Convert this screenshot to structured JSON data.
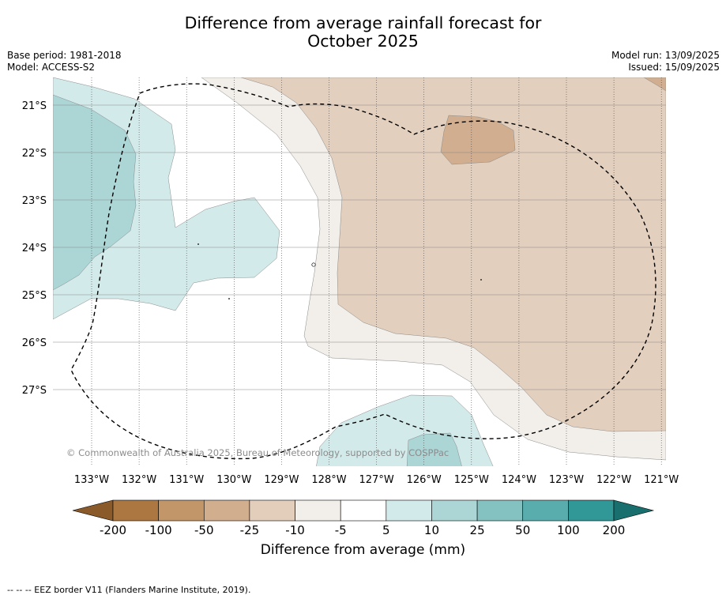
{
  "title": {
    "line1": "Difference from average rainfall forecast for",
    "line2": "October 2025"
  },
  "meta_left": {
    "base_period": "Base period: 1981-2018",
    "model": "Model: ACCESS-S2"
  },
  "meta_right": {
    "model_run": "Model run: 13/09/2025",
    "issued": "Issued: 15/09/2025"
  },
  "map": {
    "lat_labels": [
      "21°S",
      "22°S",
      "23°S",
      "24°S",
      "25°S",
      "26°S",
      "27°S"
    ],
    "lon_labels": [
      "133°W",
      "132°W",
      "131°W",
      "130°W",
      "129°W",
      "128°W",
      "127°W",
      "126°W",
      "125°W",
      "124°W",
      "123°W",
      "122°W",
      "121°W"
    ],
    "watermark": "© Commonwealth of Australia 2025, Bureau of Meteorology, supported by COSPPac",
    "colors": {
      "dry_strong": "#d0ae8f",
      "dry": "#e3cfbd",
      "dry_light": "#f2eee9",
      "neutral": "#ffffff",
      "wet_light": "#d3eaea",
      "wet": "#acd5d6",
      "eez_line": "#000000"
    }
  },
  "colorbar": {
    "ticks": [
      "-200",
      "-100",
      "-50",
      "-25",
      "-10",
      "-5",
      "5",
      "10",
      "25",
      "50",
      "100",
      "200"
    ],
    "colors": [
      "#8a5a2b",
      "#ad7741",
      "#c39669",
      "#d1ae8e",
      "#e3cebc",
      "#f2eee9",
      "#ffffff",
      "#d3eaea",
      "#acd6d6",
      "#84c1c1",
      "#5aadad",
      "#329897",
      "#196f6d"
    ],
    "label": "Difference from average (mm)"
  },
  "footnote": "--  --  -- EEZ border V11 (Flanders Marine Institute, 2019)."
}
